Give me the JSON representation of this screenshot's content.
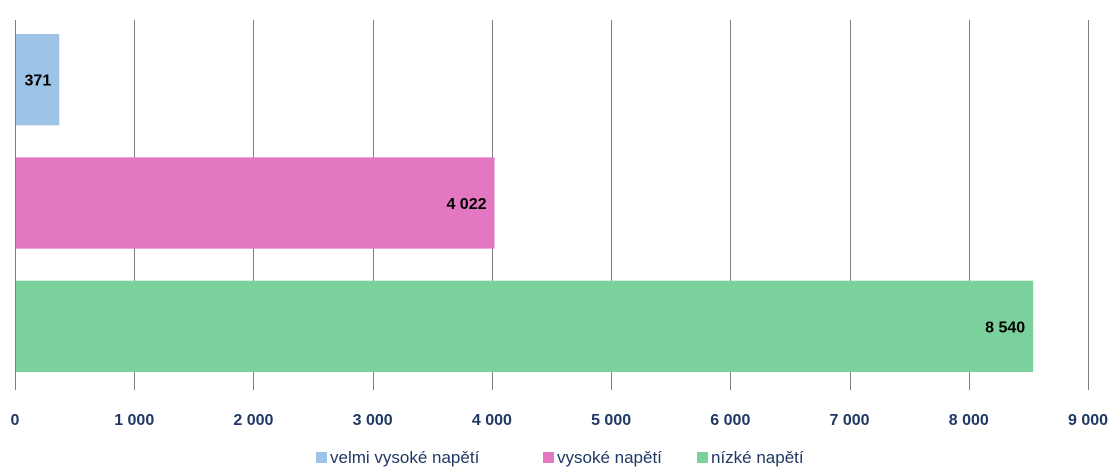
{
  "chart_data": {
    "type": "bar",
    "orientation": "horizontal",
    "categories": [
      "velmi vysoké napětí",
      "vysoké napětí",
      "nízké napětí"
    ],
    "values": [
      371,
      4022,
      8540
    ],
    "data_labels": [
      "371",
      "4 022",
      "8 540"
    ],
    "colors": [
      "#9dc3e6",
      "#e377c2",
      "#7bd19b"
    ],
    "xlim": [
      0,
      9000
    ],
    "xticks": [
      0,
      1000,
      2000,
      3000,
      4000,
      5000,
      6000,
      7000,
      8000,
      9000
    ],
    "xtick_labels": [
      "0",
      "1 000",
      "2 000",
      "3 000",
      "4 000",
      "5 000",
      "6 000",
      "7 000",
      "8 000",
      "9 000"
    ],
    "grid": "vertical",
    "legend": {
      "placement": "bottom",
      "entries": [
        "velmi vysoké napětí",
        "vysoké napětí",
        "nízké napětí"
      ]
    }
  }
}
